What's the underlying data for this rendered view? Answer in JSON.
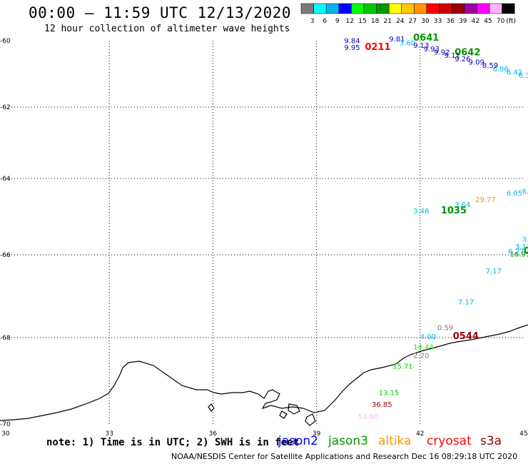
{
  "header": {
    "title": "00:00 – 11:59 UTC 12/13/2020",
    "subtitle": "12 hour collection of altimeter wave heights"
  },
  "legend": {
    "unit_label": "(ft)",
    "bins": [
      {
        "label": "3",
        "color": "#7a7a7a"
      },
      {
        "label": "6",
        "color": "#00ffff"
      },
      {
        "label": "9",
        "color": "#00b4f0"
      },
      {
        "label": "12",
        "color": "#0000ff"
      },
      {
        "label": "15",
        "color": "#00ff00"
      },
      {
        "label": "18",
        "color": "#00c800"
      },
      {
        "label": "21",
        "color": "#009600"
      },
      {
        "label": "24",
        "color": "#ffff00"
      },
      {
        "label": "27",
        "color": "#ffc800"
      },
      {
        "label": "30",
        "color": "#ff9600"
      },
      {
        "label": "33",
        "color": "#ff0000"
      },
      {
        "label": "36",
        "color": "#d20000"
      },
      {
        "label": "39",
        "color": "#960000"
      },
      {
        "label": "42",
        "color": "#a000a0"
      },
      {
        "label": "45",
        "color": "#ff00ff"
      },
      {
        "label": "70",
        "color": "#ffb4ff"
      },
      {
        "label": "",
        "color": "#000000"
      }
    ]
  },
  "map": {
    "lat_ticks": [
      "-60",
      "-62",
      "-64",
      "-66",
      "-68",
      "-70"
    ],
    "lon_ticks": [
      "30",
      "33",
      "36",
      "39",
      "42",
      "45"
    ],
    "grid": "dotted",
    "observations": [
      {
        "text": "9.84",
        "color": "#0000cc",
        "lon": 39.8,
        "lat": -60.08
      },
      {
        "text": "9.95",
        "color": "#0000cc",
        "lon": 39.8,
        "lat": -60.28
      },
      {
        "text": "0211",
        "color": "#ff0000",
        "lon": 40.4,
        "lat": -60.28,
        "bold": true
      },
      {
        "text": "9.81",
        "color": "#0000cc",
        "lon": 41.1,
        "lat": -60.02
      },
      {
        "text": "3.60",
        "color": "#00b4f0",
        "lon": 41.4,
        "lat": -60.14
      },
      {
        "text": "0641",
        "color": "#009600",
        "lon": 41.8,
        "lat": -60.0,
        "bold": true
      },
      {
        "text": "9.13",
        "color": "#0000cc",
        "lon": 41.8,
        "lat": -60.22
      },
      {
        "text": "9.93",
        "color": "#0000cc",
        "lon": 42.1,
        "lat": -60.32
      },
      {
        "text": "9.92",
        "color": "#0000cc",
        "lon": 42.4,
        "lat": -60.42
      },
      {
        "text": "0642",
        "color": "#009600",
        "lon": 43.0,
        "lat": -60.44,
        "bold": true
      },
      {
        "text": "9.11",
        "color": "#0000cc",
        "lon": 42.7,
        "lat": -60.52
      },
      {
        "text": "9.26",
        "color": "#0000cc",
        "lon": 43.0,
        "lat": -60.62
      },
      {
        "text": "9.09",
        "color": "#0000cc",
        "lon": 43.4,
        "lat": -60.72
      },
      {
        "text": "8.59",
        "color": "#0000cc",
        "lon": 43.8,
        "lat": -60.82
      },
      {
        "text": "6.86",
        "color": "#00b4f0",
        "lon": 44.1,
        "lat": -60.92
      },
      {
        "text": "6.42",
        "color": "#00b4f0",
        "lon": 44.5,
        "lat": -61.02
      },
      {
        "text": "6.3",
        "color": "#00b4f0",
        "lon": 44.85,
        "lat": -61.12
      },
      {
        "text": "6.05",
        "color": "#00b4f0",
        "lon": 44.5,
        "lat": -64.45
      },
      {
        "text": "6.",
        "color": "#00b4f0",
        "lon": 44.95,
        "lat": -64.4
      },
      {
        "text": "29.77",
        "color": "#ff9600",
        "lon": 43.6,
        "lat": -64.62
      },
      {
        "text": "3.64",
        "color": "#00b4f0",
        "lon": 43.0,
        "lat": -64.75
      },
      {
        "text": "1035",
        "color": "#009600",
        "lon": 42.6,
        "lat": -64.92,
        "bold": true
      },
      {
        "text": "3.46",
        "color": "#00b4f0",
        "lon": 41.8,
        "lat": -64.92
      },
      {
        "text": "3.0",
        "color": "#00b4f0",
        "lon": 44.95,
        "lat": -65.65
      },
      {
        "text": "3.13",
        "color": "#00b4f0",
        "lon": 44.75,
        "lat": -65.85
      },
      {
        "text": "6.27",
        "color": "#00b4f0",
        "lon": 44.55,
        "lat": -65.97
      },
      {
        "text": "16.91",
        "color": "#009600",
        "lon": 44.6,
        "lat": -66.04
      },
      {
        "text": "0",
        "color": "#009600",
        "lon": 45.0,
        "lat": -65.97,
        "bold": true
      },
      {
        "text": "7.17",
        "color": "#00b4f0",
        "lon": 43.9,
        "lat": -66.45
      },
      {
        "text": "7.17",
        "color": "#00b4f0",
        "lon": 43.1,
        "lat": -67.2
      },
      {
        "text": "0.59",
        "color": "#7a7a7a",
        "lon": 42.5,
        "lat": -67.82
      },
      {
        "text": "4.00",
        "color": "#00b4f0",
        "lon": 42.0,
        "lat": -68.03
      },
      {
        "text": "0544",
        "color": "#960000",
        "lon": 42.95,
        "lat": -68.03,
        "bold": true
      },
      {
        "text": "14.44",
        "color": "#00ff00",
        "lon": 41.8,
        "lat": -68.27
      },
      {
        "text": "2.20",
        "color": "#7a7a7a",
        "lon": 41.8,
        "lat": -68.47
      },
      {
        "text": "15.71",
        "color": "#00c800",
        "lon": 41.2,
        "lat": -68.72
      },
      {
        "text": "13.15",
        "color": "#00c800",
        "lon": 40.8,
        "lat": -69.33
      },
      {
        "text": "36.85",
        "color": "#960000",
        "lon": 40.6,
        "lat": -69.6
      },
      {
        "text": "53.60",
        "color": "#ffb4ff",
        "lon": 40.2,
        "lat": -69.88
      }
    ]
  },
  "footer": {
    "note": "note: 1) Time is in UTC; 2) SWH is in feet",
    "satellites": [
      {
        "name": "jason2",
        "color": "#0000ff"
      },
      {
        "name": "jason3",
        "color": "#009600"
      },
      {
        "name": "altika",
        "color": "#ff9600"
      },
      {
        "name": "cryosat",
        "color": "#ff0000"
      },
      {
        "name": "s3a",
        "color": "#960000"
      }
    ],
    "credit": "NOAA/NESDIS Center for Satellite Applications and Research    Dec 16 08:29:18 UTC 2020"
  }
}
